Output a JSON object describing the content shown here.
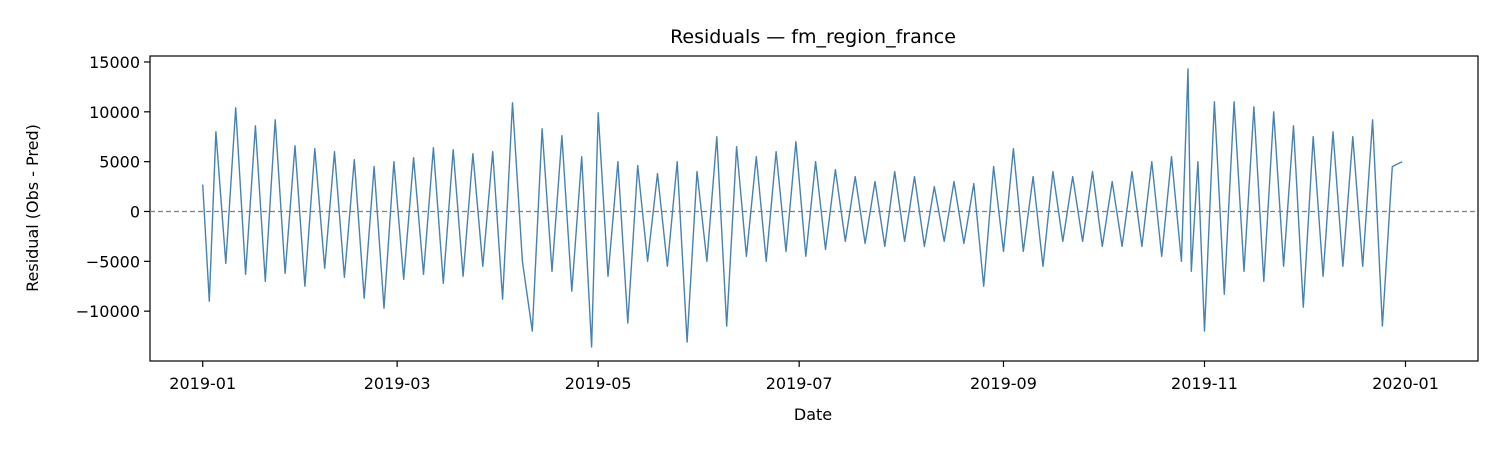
{
  "chart_data": {
    "type": "line",
    "title": "Residuals — fm_region_france",
    "xlabel": "Date",
    "ylabel": "Residual (Obs - Pred)",
    "x_range": [
      "2018-12-16",
      "2020-01-23"
    ],
    "ylim": [
      -15000,
      15600
    ],
    "x_ticks": [
      "2019-01",
      "2019-03",
      "2019-05",
      "2019-07",
      "2019-09",
      "2019-11",
      "2020-01"
    ],
    "y_ticks": [
      -10000,
      -5000,
      0,
      5000,
      10000,
      15000
    ],
    "y_tick_labels": [
      "−10000",
      "−5000",
      "0",
      "5000",
      "10000",
      "15000"
    ],
    "grid": false,
    "reference_line": {
      "y": 0,
      "style": "dashed",
      "color": "#808080"
    },
    "series": [
      {
        "color": "#4682b4",
        "x": [
          "2019-01-01",
          "2019-01-03",
          "2019-01-05",
          "2019-01-08",
          "2019-01-11",
          "2019-01-14",
          "2019-01-17",
          "2019-01-20",
          "2019-01-23",
          "2019-01-26",
          "2019-01-29",
          "2019-02-01",
          "2019-02-04",
          "2019-02-07",
          "2019-02-10",
          "2019-02-13",
          "2019-02-16",
          "2019-02-19",
          "2019-02-22",
          "2019-02-25",
          "2019-02-28",
          "2019-03-03",
          "2019-03-06",
          "2019-03-09",
          "2019-03-12",
          "2019-03-15",
          "2019-03-18",
          "2019-03-21",
          "2019-03-24",
          "2019-03-27",
          "2019-03-30",
          "2019-04-02",
          "2019-04-05",
          "2019-04-08",
          "2019-04-11",
          "2019-04-14",
          "2019-04-17",
          "2019-04-20",
          "2019-04-23",
          "2019-04-26",
          "2019-04-29",
          "2019-05-01",
          "2019-05-04",
          "2019-05-07",
          "2019-05-10",
          "2019-05-13",
          "2019-05-16",
          "2019-05-19",
          "2019-05-22",
          "2019-05-25",
          "2019-05-28",
          "2019-05-31",
          "2019-06-03",
          "2019-06-06",
          "2019-06-09",
          "2019-06-12",
          "2019-06-15",
          "2019-06-18",
          "2019-06-21",
          "2019-06-24",
          "2019-06-27",
          "2019-06-30",
          "2019-07-03",
          "2019-07-06",
          "2019-07-09",
          "2019-07-12",
          "2019-07-15",
          "2019-07-18",
          "2019-07-21",
          "2019-07-24",
          "2019-07-27",
          "2019-07-30",
          "2019-08-02",
          "2019-08-05",
          "2019-08-08",
          "2019-08-11",
          "2019-08-14",
          "2019-08-17",
          "2019-08-20",
          "2019-08-23",
          "2019-08-26",
          "2019-08-29",
          "2019-09-01",
          "2019-09-04",
          "2019-09-07",
          "2019-09-10",
          "2019-09-13",
          "2019-09-16",
          "2019-09-19",
          "2019-09-22",
          "2019-09-25",
          "2019-09-28",
          "2019-10-01",
          "2019-10-04",
          "2019-10-07",
          "2019-10-10",
          "2019-10-13",
          "2019-10-16",
          "2019-10-19",
          "2019-10-22",
          "2019-10-25",
          "2019-10-27",
          "2019-10-28",
          "2019-10-30",
          "2019-11-01",
          "2019-11-04",
          "2019-11-07",
          "2019-11-10",
          "2019-11-13",
          "2019-11-16",
          "2019-11-19",
          "2019-11-22",
          "2019-11-25",
          "2019-11-28",
          "2019-12-01",
          "2019-12-04",
          "2019-12-07",
          "2019-12-10",
          "2019-12-13",
          "2019-12-16",
          "2019-12-19",
          "2019-12-22",
          "2019-12-25",
          "2019-12-28",
          "2019-12-31"
        ],
        "y": [
          2700,
          -9000,
          8000,
          -5200,
          10400,
          -6300,
          8600,
          -7000,
          9200,
          -6200,
          6600,
          -7500,
          6300,
          -5700,
          6000,
          -6600,
          5200,
          -8700,
          4500,
          -9700,
          5000,
          -6800,
          5400,
          -6300,
          6400,
          -7200,
          6200,
          -6500,
          5800,
          -5500,
          6000,
          -8800,
          10900,
          -5000,
          -12000,
          8300,
          -6000,
          7600,
          -8000,
          5500,
          -13600,
          9900,
          -6500,
          5000,
          -11200,
          4600,
          -5000,
          3800,
          -5500,
          5000,
          -13100,
          4000,
          -5000,
          7500,
          -11500,
          6500,
          -4500,
          5500,
          -5000,
          6000,
          -4000,
          7000,
          -4500,
          5000,
          -3800,
          4200,
          -3000,
          3500,
          -3200,
          3000,
          -3500,
          4000,
          -3000,
          3500,
          -3500,
          2500,
          -3000,
          3000,
          -3200,
          2800,
          -7500,
          4500,
          -4000,
          6300,
          -4000,
          3500,
          -5500,
          4000,
          -3000,
          3500,
          -3000,
          4000,
          -3500,
          3000,
          -3500,
          4000,
          -3500,
          5000,
          -4500,
          5500,
          -5000,
          14300,
          -6000,
          5000,
          -12000,
          11000,
          -8300,
          11000,
          -6000,
          10500,
          -7000,
          10000,
          -5500,
          8600,
          -9600,
          7500,
          -6500,
          8000,
          -5500,
          7500,
          -5500,
          9200,
          -11500,
          4500,
          5000
        ]
      }
    ]
  }
}
